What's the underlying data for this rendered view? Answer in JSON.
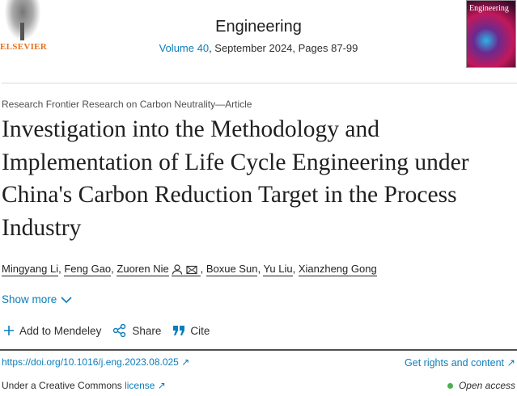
{
  "header": {
    "publisher_logo_text": "ELSEVIER",
    "journal": "Engineering",
    "volume": "Volume 40",
    "issue_rest": ", September 2024, Pages 87-99",
    "cover_text": "Engineering"
  },
  "article": {
    "kicker": "Research Frontier Research on Carbon Neutrality—Article",
    "title": "Investigation into the Methodology and Implementation of Life Cycle Engineering under China's Carbon Reduction Target in the Process Industry",
    "authors": [
      "Mingyang Li",
      "Feng Gao",
      "Zuoren Nie",
      "Boxue Sun",
      "Yu Liu",
      "Xianzheng Gong"
    ],
    "show_more": "Show more"
  },
  "toolbar": {
    "mendeley": "Add to Mendeley",
    "share": "Share",
    "cite": "Cite"
  },
  "links": {
    "doi": "https://doi.org/10.1016/j.eng.2023.08.025",
    "rights": "Get rights and content",
    "license_prefix": "Under a Creative Commons ",
    "license_link": "license",
    "open_access": "Open access"
  },
  "colors": {
    "link": "#0c7dbb",
    "brand": "#e9711c",
    "open_access": "#4caf50"
  }
}
